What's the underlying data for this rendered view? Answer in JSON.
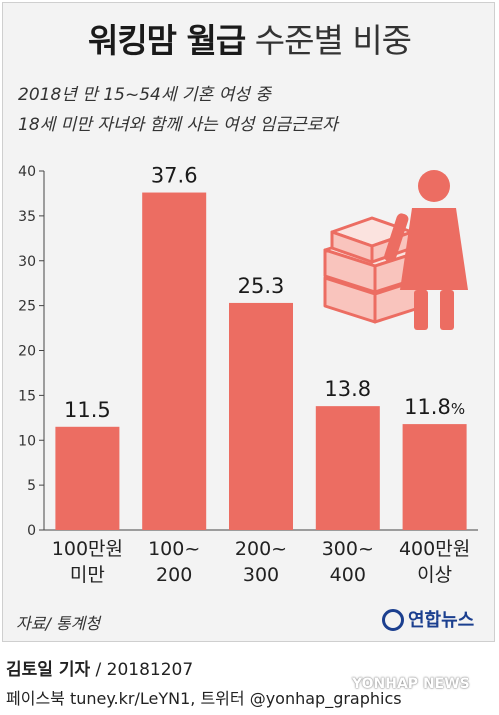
{
  "title_bold": "워킹맘 월급",
  "title_rest": "수준별 비중",
  "subtitle_line1": "2018년 만 15~54세 기혼 여성 중",
  "subtitle_line2": "18세 미만 자녀와 함께 사는 여성 임금근로자",
  "chart_data": {
    "type": "bar",
    "title": "워킹맘 월급 수준별 비중",
    "categories": [
      "100만원 미만",
      "100~200",
      "200~300",
      "300~400",
      "400만원 이상"
    ],
    "category_lines": [
      [
        "100만원",
        "미만"
      ],
      [
        "100~",
        "200"
      ],
      [
        "200~",
        "300"
      ],
      [
        "300~",
        "400"
      ],
      [
        "400만원",
        "이상"
      ]
    ],
    "values": [
      11.5,
      37.6,
      25.3,
      13.8,
      11.8
    ],
    "value_labels": [
      "11.5",
      "37.6",
      "25.3",
      "13.8",
      "11.8"
    ],
    "unit": "%",
    "ylim": [
      0,
      40
    ],
    "yticks": [
      0,
      5,
      10,
      15,
      20,
      25,
      30,
      35,
      40
    ],
    "xlabel": "",
    "ylabel": "",
    "grid": false,
    "bar_color": "#ec6d62",
    "bar_color_light": "#f9c4bd"
  },
  "source": "자료/ 통계청",
  "logo_text": "연합뉴스",
  "reporter": "김토일 기자",
  "date": " / 20181207",
  "social": "페이스북 tuney.kr/LeYN1, 트위터 @yonhap_graphics",
  "watermark": "YONHAP NEWS",
  "colors": {
    "accent": "#ec6d62",
    "logo": "#1b3f8f"
  }
}
